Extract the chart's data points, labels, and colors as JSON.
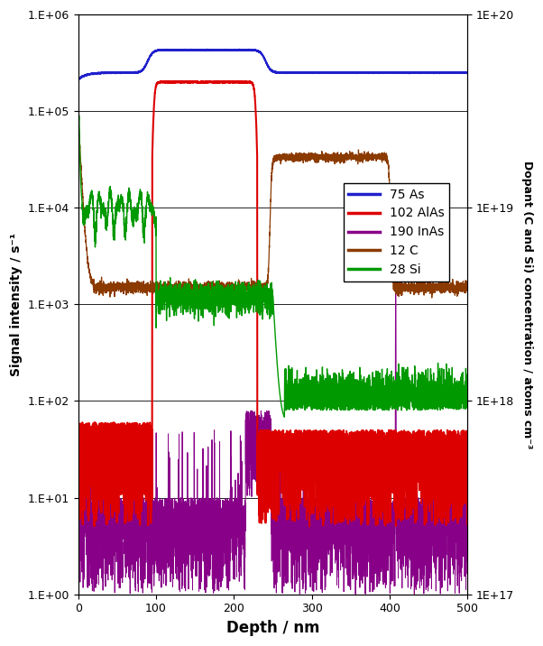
{
  "xlabel": "Depth / nm",
  "ylabel_left": "Signal intensity / s⁻¹",
  "ylabel_right": "Dopant (C and Si) concentration / atoms cm⁻³",
  "xlim": [
    0,
    500
  ],
  "ylim": [
    1.0,
    1000000.0
  ],
  "right_ylim": [
    1e+17,
    1e+20
  ],
  "legend_labels": [
    "75 As",
    "102 AlAs",
    "190 InAs",
    "12 C",
    "28 Si"
  ],
  "colors": {
    "As": "#2020cc",
    "AlAs": "#dd0000",
    "InAs": "#880088",
    "C": "#8B3A00",
    "Si": "#009900"
  },
  "yticks_left": [
    1.0,
    10.0,
    100.0,
    1000.0,
    10000.0,
    100000.0,
    1000000.0
  ],
  "ytick_labels_left": [
    "1.E+00",
    "1.E+01",
    "1.E+02",
    "1.E+03",
    "1.E+04",
    "1.E+05",
    "1.E+06"
  ],
  "yticks_right": [
    1e+17,
    1e+18,
    1e+19,
    1e+20
  ],
  "ytick_labels_right": [
    "1E+17",
    "1E+18",
    "1E+19",
    "1E+20"
  ],
  "xticks": [
    0,
    100,
    200,
    300,
    400,
    500
  ]
}
